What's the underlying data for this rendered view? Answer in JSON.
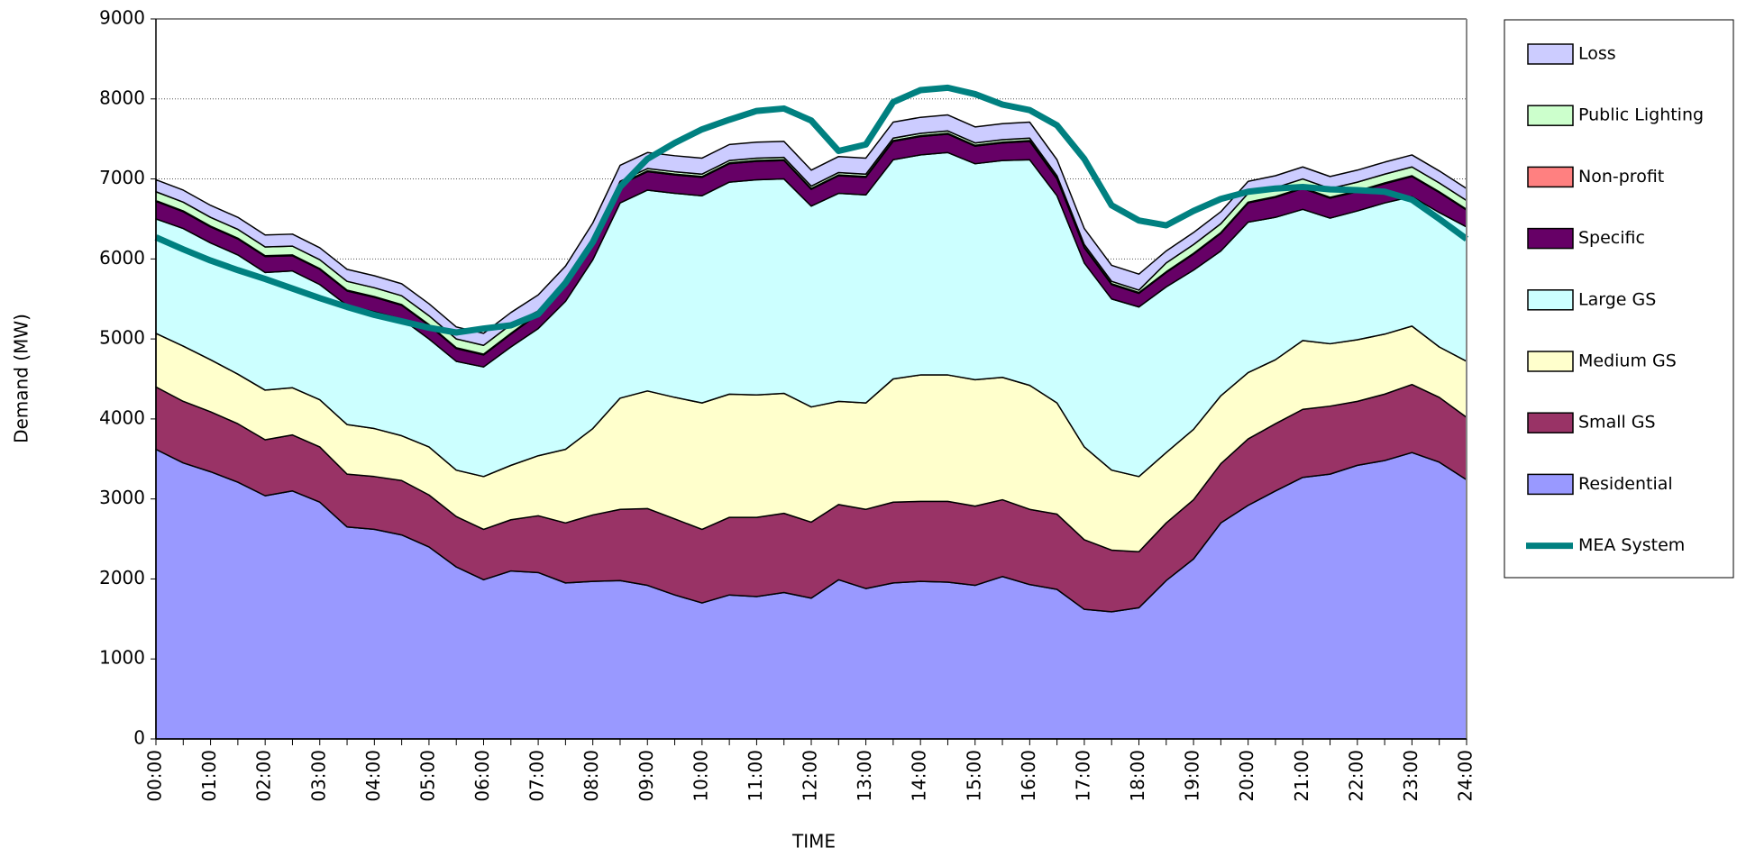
{
  "chart_data": {
    "type": "area",
    "stacked": true,
    "y_label": "Demand (MW)",
    "x_label": "TIME",
    "categories": [
      "00:00",
      null,
      "01:00",
      null,
      "02:00",
      null,
      "03:00",
      null,
      "04:00",
      null,
      "05:00",
      null,
      "06:00",
      null,
      "07:00",
      null,
      "08:00",
      null,
      "09:00",
      null,
      "10:00",
      null,
      "11:00",
      null,
      "12:00",
      null,
      "13:00",
      null,
      "14:00",
      null,
      "15:00",
      null,
      "16:00",
      null,
      "17:00",
      null,
      "18:00",
      null,
      "19:00",
      null,
      "20:00",
      null,
      "21:00",
      null,
      "22:00",
      null,
      "23:00",
      null,
      "24:00"
    ],
    "ylim": [
      0,
      9000
    ],
    "yticks": [
      0,
      1000,
      2000,
      3000,
      4000,
      5000,
      6000,
      7000,
      8000,
      9000
    ],
    "grid": true,
    "legend": "right",
    "series": [
      {
        "name": "Residential",
        "color": "#9999ff",
        "values": [
          3620,
          3450,
          3340,
          3210,
          3040,
          3100,
          2960,
          2650,
          2620,
          2550,
          2400,
          2150,
          1990,
          2100,
          2080,
          1950,
          1970,
          1980,
          1920,
          1800,
          1700,
          1800,
          1780,
          1830,
          1760,
          1990,
          1880,
          1950,
          1970,
          1960,
          1920,
          2030,
          1930,
          1870,
          1620,
          1590,
          1640,
          1980,
          2250,
          2700,
          2920,
          3100,
          3270,
          3310,
          3420,
          3480,
          3580,
          3460,
          3240
        ]
      },
      {
        "name": "Small GS",
        "color": "#993366",
        "values": [
          780,
          770,
          750,
          730,
          700,
          700,
          690,
          660,
          660,
          680,
          650,
          630,
          630,
          640,
          710,
          750,
          830,
          890,
          960,
          950,
          920,
          970,
          990,
          990,
          950,
          940,
          990,
          1010,
          1000,
          1010,
          990,
          960,
          940,
          940,
          870,
          770,
          700,
          720,
          740,
          740,
          830,
          840,
          850,
          850,
          800,
          830,
          850,
          810,
          780
        ]
      },
      {
        "name": "Medium GS",
        "color": "#ffffcc",
        "values": [
          670,
          690,
          650,
          620,
          620,
          590,
          590,
          620,
          600,
          560,
          600,
          580,
          660,
          680,
          750,
          920,
          1080,
          1390,
          1470,
          1520,
          1580,
          1540,
          1530,
          1500,
          1440,
          1290,
          1330,
          1540,
          1580,
          1580,
          1580,
          1530,
          1550,
          1390,
          1160,
          1000,
          940,
          880,
          880,
          850,
          830,
          800,
          860,
          780,
          770,
          750,
          730,
          630,
          700
        ]
      },
      {
        "name": "Large GS",
        "color": "#ccffff",
        "values": [
          1430,
          1470,
          1460,
          1490,
          1470,
          1460,
          1440,
          1490,
          1460,
          1460,
          1350,
          1360,
          1370,
          1480,
          1590,
          1850,
          2110,
          2440,
          2510,
          2550,
          2590,
          2650,
          2690,
          2680,
          2510,
          2600,
          2600,
          2740,
          2750,
          2780,
          2700,
          2710,
          2820,
          2590,
          2300,
          2140,
          2120,
          2070,
          1990,
          1810,
          1880,
          1780,
          1640,
          1570,
          1610,
          1640,
          1620,
          1680,
          1680
        ]
      },
      {
        "name": "Specific",
        "color": "#660066",
        "values": [
          220,
          210,
          200,
          200,
          200,
          190,
          190,
          180,
          180,
          170,
          170,
          160,
          150,
          160,
          180,
          200,
          220,
          230,
          230,
          230,
          230,
          230,
          230,
          230,
          210,
          220,
          220,
          230,
          230,
          230,
          220,
          220,
          230,
          210,
          190,
          180,
          170,
          180,
          200,
          220,
          240,
          250,
          260,
          250,
          240,
          240,
          250,
          250,
          210
        ]
      },
      {
        "name": "Non-profit",
        "color": "#ff8080",
        "values": [
          10,
          10,
          10,
          10,
          10,
          10,
          10,
          10,
          10,
          10,
          10,
          10,
          10,
          10,
          10,
          10,
          10,
          10,
          10,
          10,
          10,
          10,
          10,
          10,
          10,
          10,
          10,
          10,
          10,
          10,
          10,
          10,
          10,
          10,
          10,
          10,
          10,
          10,
          10,
          10,
          10,
          10,
          10,
          10,
          10,
          10,
          10,
          10,
          10
        ]
      },
      {
        "name": "Public Lighting",
        "color": "#ccffcc",
        "values": [
          110,
          110,
          110,
          110,
          110,
          110,
          110,
          110,
          110,
          110,
          110,
          110,
          110,
          110,
          30,
          30,
          30,
          30,
          30,
          30,
          30,
          30,
          30,
          30,
          30,
          30,
          30,
          30,
          30,
          30,
          30,
          30,
          30,
          30,
          30,
          30,
          30,
          110,
          110,
          110,
          110,
          110,
          110,
          110,
          110,
          110,
          110,
          110,
          110
        ]
      },
      {
        "name": "Loss",
        "color": "#ccccff",
        "values": [
          150,
          150,
          150,
          150,
          150,
          150,
          150,
          150,
          150,
          150,
          150,
          150,
          150,
          150,
          200,
          200,
          200,
          200,
          200,
          200,
          200,
          200,
          200,
          200,
          200,
          200,
          200,
          200,
          200,
          200,
          200,
          200,
          200,
          200,
          200,
          200,
          200,
          150,
          150,
          150,
          150,
          150,
          150,
          150,
          150,
          150,
          150,
          150,
          150
        ]
      },
      {
        "name": "MEA System",
        "color": "#008080",
        "type": "line",
        "values": [
          6270,
          6120,
          5980,
          5860,
          5750,
          5630,
          5510,
          5400,
          5300,
          5220,
          5140,
          5080,
          5130,
          5170,
          5310,
          5700,
          6210,
          6900,
          7250,
          7450,
          7620,
          7740,
          7850,
          7880,
          7730,
          7350,
          7430,
          7960,
          8110,
          8140,
          8060,
          7930,
          7860,
          7670,
          7250,
          6670,
          6480,
          6420,
          6600,
          6750,
          6840,
          6880,
          6900,
          6870,
          6860,
          6840,
          6740,
          6500,
          6250
        ]
      }
    ]
  }
}
